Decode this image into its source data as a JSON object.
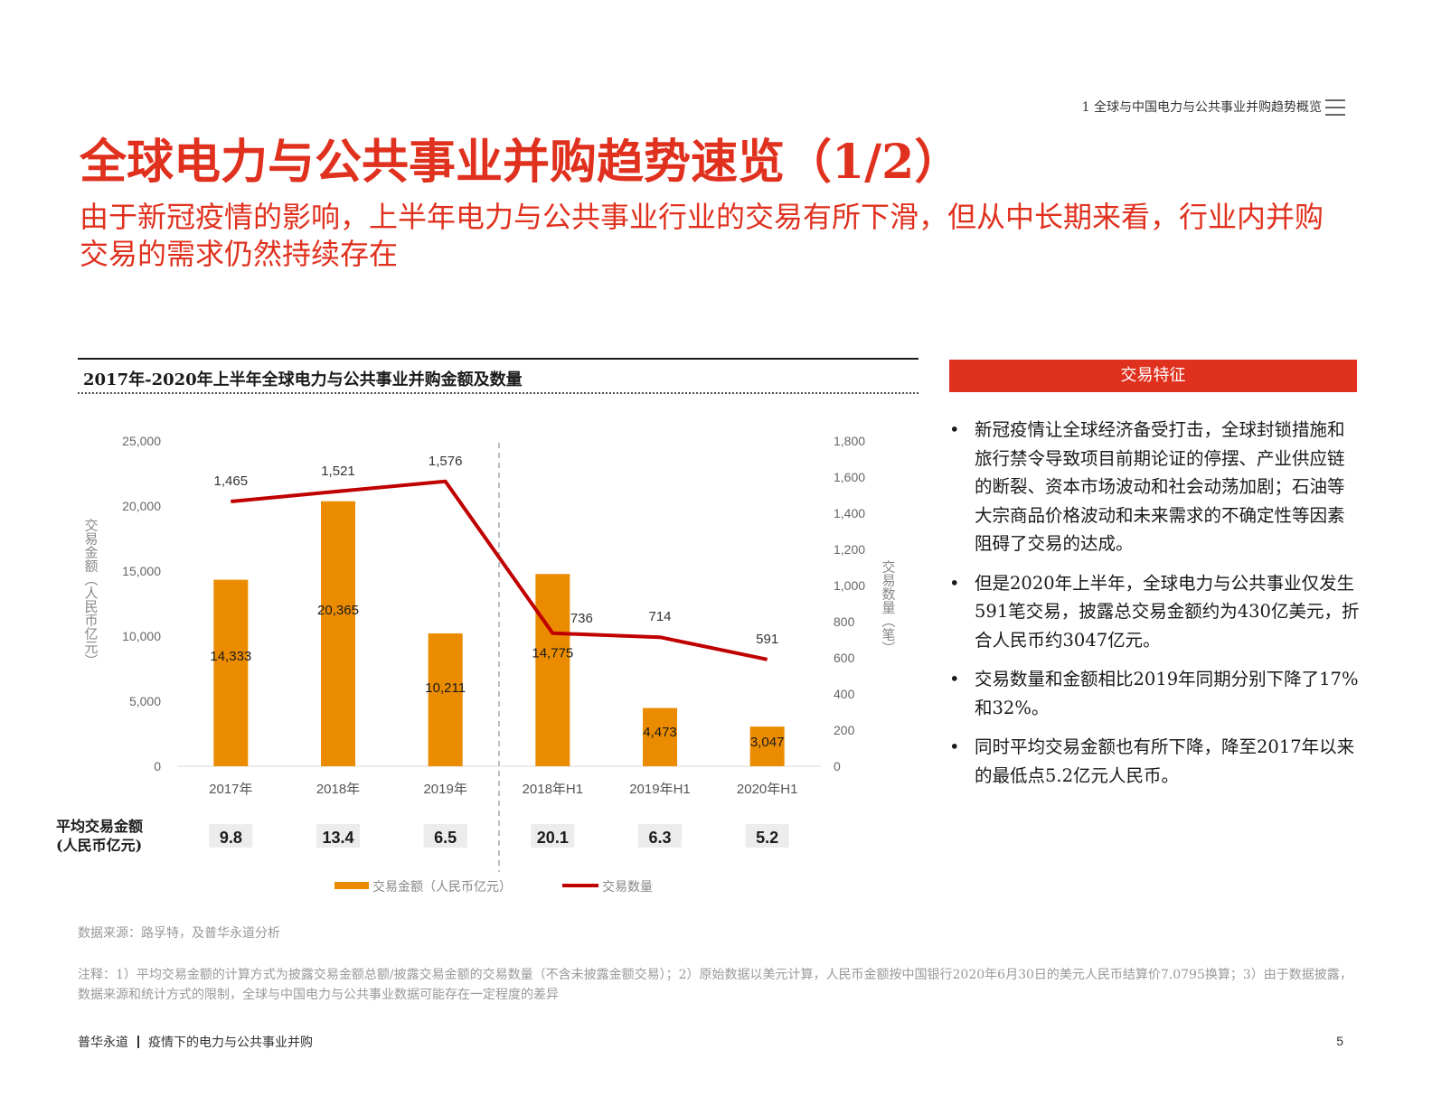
{
  "header": {
    "section": "1 全球与中国电力与公共事业并购趋势概览",
    "menu_icon": "menu-lines-icon"
  },
  "title": "全球电力与公共事业并购趋势速览（1/2）",
  "subtitle": "由于新冠疫情的影响，上半年电力与公共事业行业的交易有所下滑，但从中长期来看，行业内并购交易的需求仍然持续存在",
  "chart_heading": "2017年-2020年上半年全球电力与公共事业并购金额及数量",
  "chart_data": {
    "type": "bar",
    "categories": [
      "2017年",
      "2018年",
      "2019年",
      "2018年H1",
      "2019年H1",
      "2020年H1"
    ],
    "series": [
      {
        "name": "交易金额（人民币亿元）",
        "type": "bar",
        "axis": "left",
        "color": "#eb8c00",
        "values": [
          14333,
          20365,
          10211,
          14775,
          4473,
          3047
        ],
        "labels": [
          "14,333",
          "20,365",
          "10,211",
          "14,775",
          "4,473",
          "3,047"
        ]
      },
      {
        "name": "交易数量",
        "type": "line",
        "axis": "right",
        "color": "#c00000",
        "values": [
          1465,
          1521,
          1576,
          736,
          714,
          591
        ],
        "labels": [
          "1,465",
          "1,521",
          "1,576",
          "736",
          "714",
          "591"
        ]
      }
    ],
    "ylabel": "交易金额（人民币亿元）",
    "y2label": "交易数量（笔）",
    "ylim": [
      0,
      25000
    ],
    "y2lim": [
      0,
      1800
    ],
    "yticks": [
      "0",
      "5,000",
      "10,000",
      "15,000",
      "20,000",
      "25,000"
    ],
    "y2ticks": [
      "0",
      "200",
      "400",
      "600",
      "800",
      "1,000",
      "1,200",
      "1,400",
      "1,600",
      "1,800"
    ],
    "avg_label_lines": [
      "平均交易金额",
      "(人民币亿元)"
    ],
    "avg_values": [
      "9.8",
      "13.4",
      "6.5",
      "20.1",
      "6.3",
      "5.2"
    ],
    "legend_position": "bottom",
    "grid": false
  },
  "panel": {
    "header": "交易特征",
    "bullets": [
      "新冠疫情让全球经济备受打击，全球封锁措施和旅行禁令导致项目前期论证的停摆、产业供应链的断裂、资本市场波动和社会动荡加剧；石油等大宗商品价格波动和未来需求的不确定性等因素阻碍了交易的达成。",
      "但是2020年上半年，全球电力与公共事业仅发生591笔交易，披露总交易金额约为430亿美元，折合人民币约3047亿元。",
      "交易数量和金额相比2019年同期分别下降了17%和32%。",
      "同时平均交易金额也有所下降，降至2017年以来的最低点5.2亿元人民币。"
    ]
  },
  "source": "数据来源：路孚特，及普华永道分析",
  "note": "注释：1）平均交易金额的计算方式为披露交易金额总额/披露交易金额的交易数量（不含未披露金额交易）；2）原始数据以美元计算，人民币金额按中国银行2020年6月30日的美元人民币结算价7.0795换算；3）由于数据披露，数据来源和统计方式的限制，全球与中国电力与公共事业数据可能存在一定程度的差异",
  "footer": {
    "brand": "普华永道",
    "report": "疫情下的电力与公共事业并购",
    "page": "5"
  }
}
